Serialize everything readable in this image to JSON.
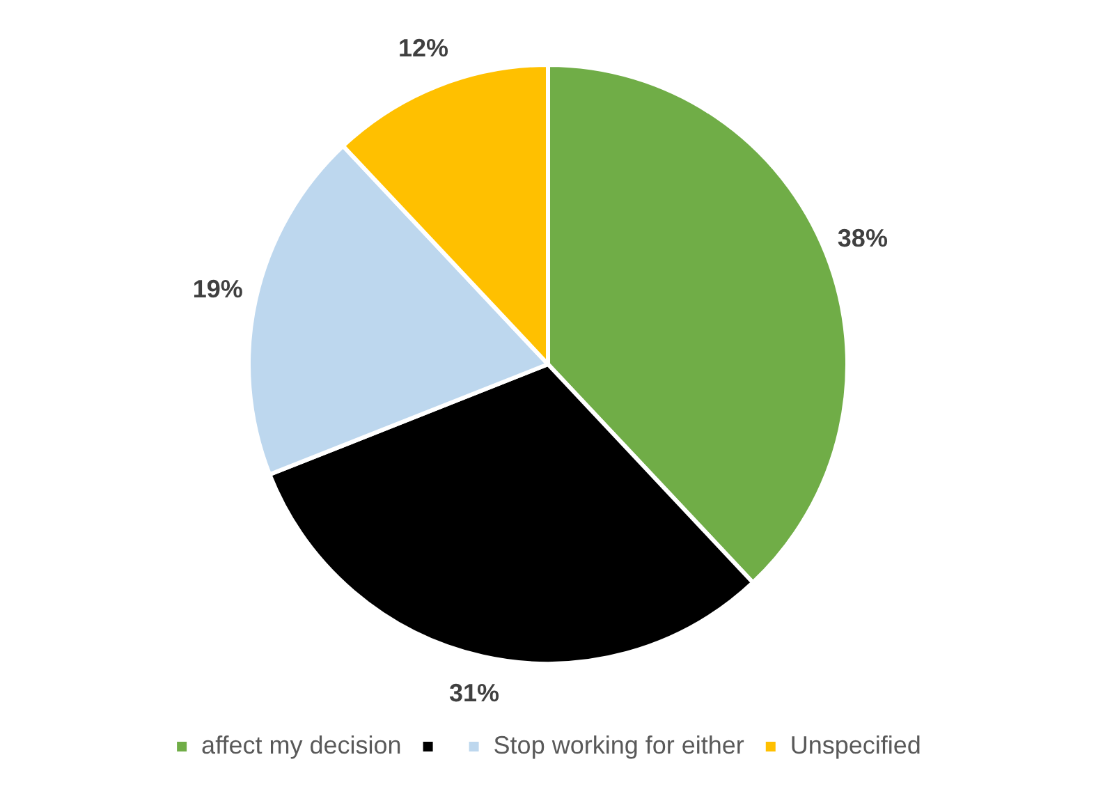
{
  "chart_data": {
    "type": "pie",
    "categories": [
      "affect my decision",
      null,
      "Stop working for either",
      "Unspecified"
    ],
    "values": [
      38,
      31,
      19,
      12
    ],
    "colors": [
      "#70ad47",
      "#000000",
      "#bdd7ee",
      "#ffc000"
    ],
    "value_labels": [
      "38%",
      "31%",
      "19%",
      "12%"
    ],
    "legend": "bottom"
  }
}
